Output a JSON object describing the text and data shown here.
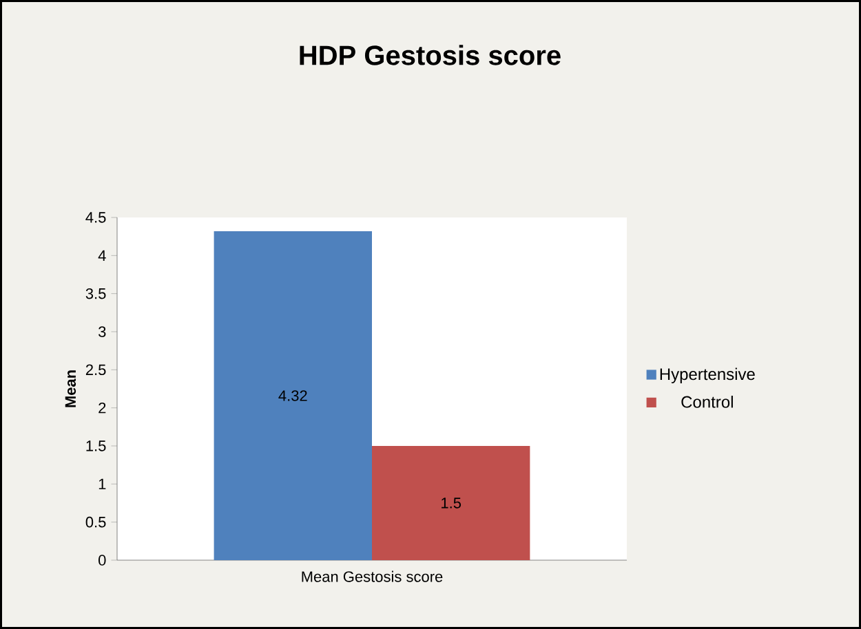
{
  "chart_data": {
    "type": "bar",
    "title": "HDP Gestosis score",
    "ylabel": "Mean",
    "categories": [
      "Mean Gestosis score"
    ],
    "series": [
      {
        "name": "Hypertensive",
        "color": "#4f81bd",
        "values": [
          4.32
        ]
      },
      {
        "name": "Control",
        "color": "#c0504d",
        "values": [
          1.5
        ]
      }
    ],
    "ylim": [
      0,
      4.5
    ],
    "yticks": [
      0,
      0.5,
      1,
      1.5,
      2,
      2.5,
      3,
      3.5,
      4,
      4.5
    ],
    "data_labels": true,
    "legend": "right"
  }
}
